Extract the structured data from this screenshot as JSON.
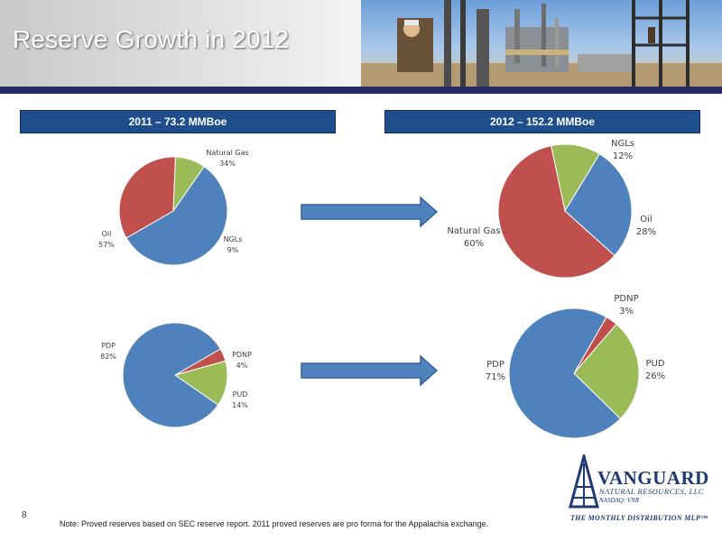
{
  "slide": {
    "title": "Reserve Growth in 2012",
    "number": "8",
    "note": "Note: Proved reserves based on SEC reserve report. 2011 proved reserves are pro forma for the Appalachia exchange."
  },
  "panels": {
    "left_header": "2011 – 73.2 MMBoe",
    "right_header": "2012 – 152.2 MMBoe"
  },
  "logo": {
    "name": "VANGUARD",
    "subtitle": "NATURAL RESOURCES, LLC",
    "ticker": "NASDAQ: VNR",
    "tagline": "THE MONTHLY DISTRIBUTION MLP™"
  },
  "colors": {
    "blue": "#4f81bd",
    "red": "#c0504d",
    "green": "#9bbb59",
    "navy": "#242b63",
    "header_blue": "#1f4e8c",
    "arrow_blue": "#4f81bd"
  },
  "chart_data": [
    {
      "type": "pie",
      "title": "",
      "slices": [
        {
          "label": "Natural Gas",
          "value": 34,
          "pct_label": "34%",
          "color": "#c0504d"
        },
        {
          "label": "NGLs",
          "value": 9,
          "pct_label": "9%",
          "color": "#9bbb59"
        },
        {
          "label": "Oil",
          "value": 57,
          "pct_label": "57%",
          "color": "#4f81bd"
        }
      ]
    },
    {
      "type": "pie",
      "title": "",
      "slices": [
        {
          "label": "NGLs",
          "value": 12,
          "pct_label": "12%",
          "color": "#9bbb59"
        },
        {
          "label": "Oil",
          "value": 28,
          "pct_label": "28%",
          "color": "#4f81bd"
        },
        {
          "label": "Natural Gas",
          "value": 60,
          "pct_label": "60%",
          "color": "#c0504d"
        }
      ]
    },
    {
      "type": "pie",
      "title": "",
      "slices": [
        {
          "label": "PDNP",
          "value": 4,
          "pct_label": "4%",
          "color": "#c0504d"
        },
        {
          "label": "PUD",
          "value": 14,
          "pct_label": "14%",
          "color": "#9bbb59"
        },
        {
          "label": "PDP",
          "value": 82,
          "pct_label": "82%",
          "color": "#4f81bd"
        }
      ]
    },
    {
      "type": "pie",
      "title": "",
      "slices": [
        {
          "label": "PDNP",
          "value": 3,
          "pct_label": "3%",
          "color": "#c0504d"
        },
        {
          "label": "PUD",
          "value": 26,
          "pct_label": "26%",
          "color": "#9bbb59"
        },
        {
          "label": "PDP",
          "value": 71,
          "pct_label": "71%",
          "color": "#4f81bd"
        }
      ]
    }
  ]
}
